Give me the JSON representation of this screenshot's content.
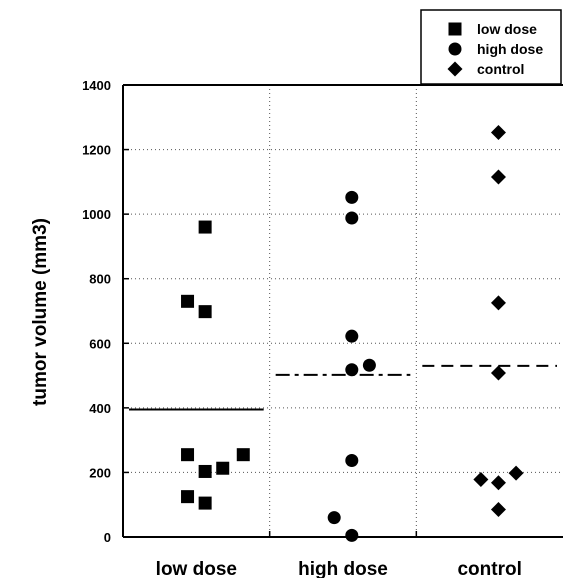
{
  "chart_data": {
    "type": "scatter",
    "ylabel": "tumor volume (mm3)",
    "xlabel": "",
    "ylim": [
      0,
      1400
    ],
    "yticks": [
      "0",
      "200",
      "400",
      "600",
      "800",
      "1000",
      "1200",
      "1400"
    ],
    "categories": [
      "low dose",
      "high dose",
      "control"
    ],
    "grid": "dotted",
    "legend": {
      "placement": "top-right"
    },
    "series": [
      {
        "name": "low dose",
        "marker": "square",
        "category": "low dose",
        "color": "#000000",
        "points": [
          {
            "x": 0.56,
            "y": 960
          },
          {
            "x": 0.44,
            "y": 730
          },
          {
            "x": 0.56,
            "y": 698
          },
          {
            "x": 0.44,
            "y": 255
          },
          {
            "x": 0.82,
            "y": 255
          },
          {
            "x": 0.68,
            "y": 213
          },
          {
            "x": 0.56,
            "y": 203
          },
          {
            "x": 0.44,
            "y": 125
          },
          {
            "x": 0.56,
            "y": 105
          }
        ],
        "summary_line": {
          "y": 395,
          "style": "solid"
        }
      },
      {
        "name": "high dose",
        "marker": "circle",
        "category": "high dose",
        "color": "#000000",
        "points": [
          {
            "x": 0.56,
            "y": 1052
          },
          {
            "x": 0.56,
            "y": 988
          },
          {
            "x": 0.56,
            "y": 622
          },
          {
            "x": 0.68,
            "y": 532
          },
          {
            "x": 0.56,
            "y": 518
          },
          {
            "x": 0.56,
            "y": 237
          },
          {
            "x": 0.44,
            "y": 60
          },
          {
            "x": 0.56,
            "y": 5
          }
        ],
        "summary_line": {
          "y": 502,
          "style": "dash-dot"
        }
      },
      {
        "name": "control",
        "marker": "diamond",
        "category": "control",
        "color": "#000000",
        "points": [
          {
            "x": 0.56,
            "y": 1253
          },
          {
            "x": 0.56,
            "y": 1115
          },
          {
            "x": 0.56,
            "y": 725
          },
          {
            "x": 0.56,
            "y": 508
          },
          {
            "x": 0.44,
            "y": 178
          },
          {
            "x": 0.68,
            "y": 198
          },
          {
            "x": 0.56,
            "y": 168
          },
          {
            "x": 0.56,
            "y": 85
          }
        ],
        "summary_line": {
          "y": 530,
          "style": "dashed"
        }
      }
    ]
  }
}
